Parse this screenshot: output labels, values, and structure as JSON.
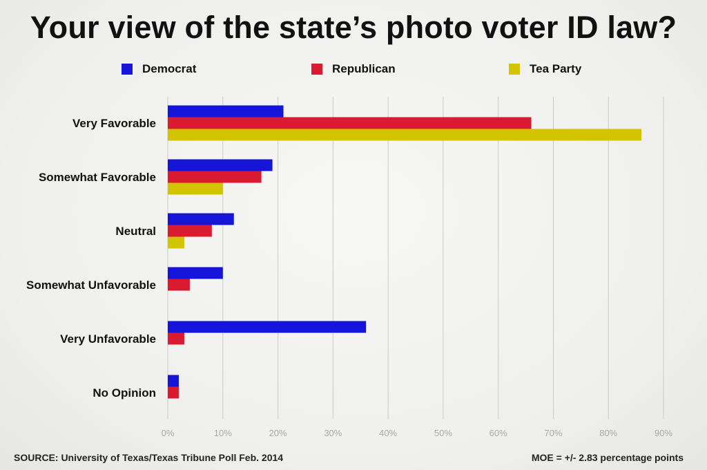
{
  "title": "Your view of the state’s photo voter ID law?",
  "source": "SOURCE: University of Texas/Texas Tribune Poll Feb. 2014",
  "moe": "MOE = +/- 2.83 percentage points",
  "colors": {
    "Democrat": "#1515d9",
    "Republican": "#d91a30",
    "Tea Party": "#d3c400",
    "grid": "#c9c9c9"
  },
  "chart_data": {
    "type": "bar",
    "orientation": "horizontal",
    "title": "Your view of the state’s photo voter ID law?",
    "categories": [
      "Very Favorable",
      "Somewhat Favorable",
      "Neutral",
      "Somewhat Unfavorable",
      "Very Unfavorable",
      "No Opinion"
    ],
    "series": [
      {
        "name": "Democrat",
        "values": [
          21,
          19,
          12,
          10,
          36,
          2
        ]
      },
      {
        "name": "Republican",
        "values": [
          66,
          17,
          8,
          4,
          3,
          2
        ]
      },
      {
        "name": "Tea Party",
        "values": [
          86,
          10,
          3,
          0,
          0,
          0
        ]
      }
    ],
    "xlim": [
      0,
      90
    ],
    "x_ticks": [
      0,
      10,
      20,
      30,
      40,
      50,
      60,
      70,
      80,
      90
    ],
    "x_tick_labels": [
      "0%",
      "10%",
      "20%",
      "30%",
      "40%",
      "50%",
      "60%",
      "70%",
      "80%",
      "90%"
    ],
    "grid": true,
    "legend_position": "top"
  }
}
